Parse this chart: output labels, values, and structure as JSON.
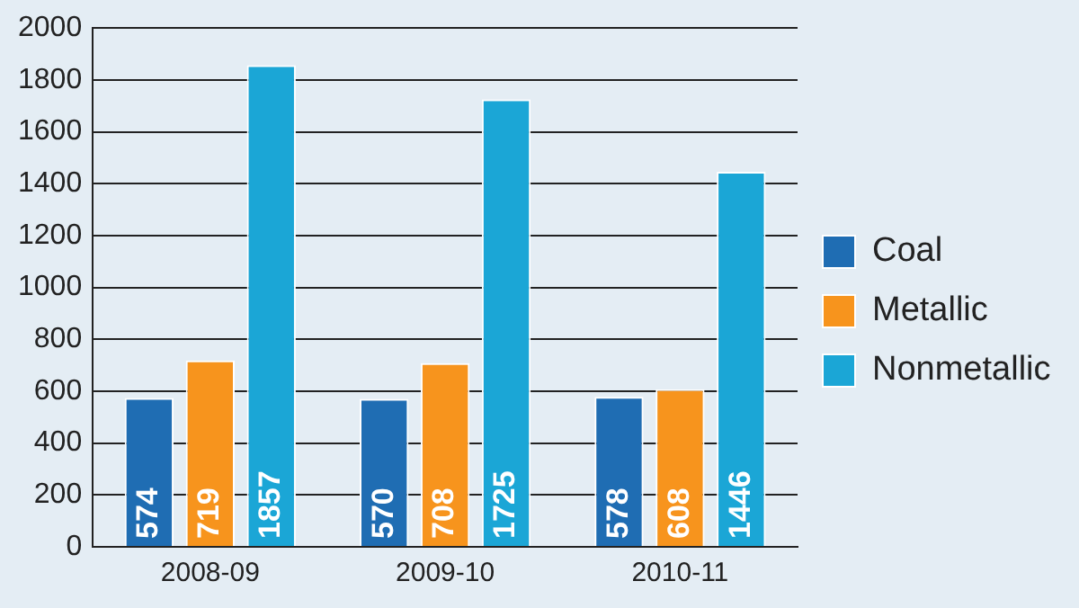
{
  "chart_data": {
    "type": "bar",
    "categories": [
      "2008-09",
      "2009-10",
      "2010-11"
    ],
    "series": [
      {
        "name": "Coal",
        "color": "#1f6db3",
        "values": [
          574,
          570,
          578
        ]
      },
      {
        "name": "Metallic",
        "color": "#f7941d",
        "values": [
          719,
          708,
          608
        ]
      },
      {
        "name": "Nonmetallic",
        "color": "#1ba6d6",
        "values": [
          1857,
          1725,
          1446
        ]
      }
    ],
    "ylim": [
      0,
      2000
    ],
    "yticks": [
      0,
      200,
      400,
      600,
      800,
      1000,
      1200,
      1400,
      1600,
      1800,
      2000
    ],
    "grid": "y",
    "legend": "right",
    "data_labels": true
  }
}
